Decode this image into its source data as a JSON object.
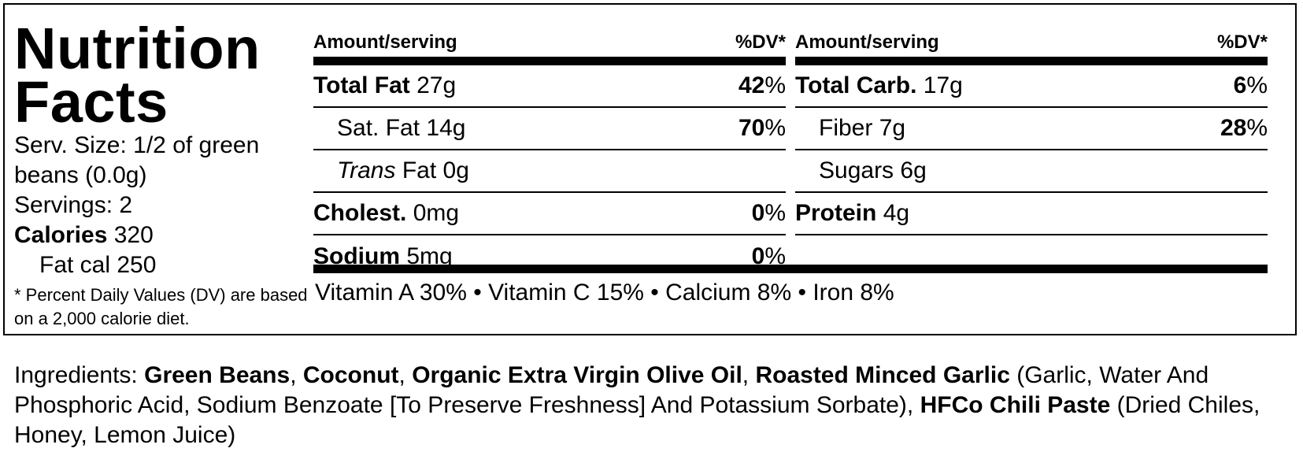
{
  "title_line1": "Nutrition",
  "title_line2": "Facts",
  "serving_size": "Serv. Size: 1/2 of green beans (0.0g)",
  "servings": "Servings: 2",
  "calories_label": "Calories",
  "calories_value": "320",
  "fat_cal": "Fat cal 250",
  "footnote": "* Percent Daily Values (DV) are based on a 2,000 calorie diet.",
  "header": {
    "amount": "Amount/serving",
    "dv": "%DV*"
  },
  "left_rows": [
    {
      "name": "Total Fat",
      "amount": "27g",
      "pct": "42",
      "pct_sign": "%"
    },
    {
      "name": "Sat. Fat",
      "amount": "14g",
      "pct": "70",
      "pct_sign": "%"
    },
    {
      "name_italic": "Trans",
      "name": "Fat",
      "amount": "0g"
    },
    {
      "name": "Cholest.",
      "amount": "0mg",
      "pct": "0",
      "pct_sign": "%"
    },
    {
      "name": "Sodium",
      "amount": "5mg",
      "pct": "0",
      "pct_sign": "%"
    }
  ],
  "right_rows": [
    {
      "name": "Total Carb.",
      "amount": "17g",
      "pct": "6",
      "pct_sign": "%"
    },
    {
      "name": "Fiber",
      "amount": "7g",
      "pct": "28",
      "pct_sign": "%"
    },
    {
      "name": "Sugars",
      "amount": "6g"
    },
    {
      "name": "Protein",
      "amount": "4g"
    }
  ],
  "vitamins": "Vitamin A 30% • Vitamin C 15% • Calcium 8% • Iron 8%",
  "ingredients": {
    "prefix": "Ingredients: ",
    "item1": "Green Beans",
    "sep1": ", ",
    "item2": "Coconut",
    "sep2": ", ",
    "item3": "Organic Extra Virgin Olive Oil",
    "sep3": ", ",
    "item4": "Roasted Minced Garlic",
    "detail4": " (Garlic, Water And Phosphoric Acid, Sodium Benzoate [To Preserve Freshness] And Potassium Sorbate), ",
    "item5": "HFCo Chili Paste",
    "detail5": " (Dried Chiles, Honey, Lemon Juice)"
  }
}
